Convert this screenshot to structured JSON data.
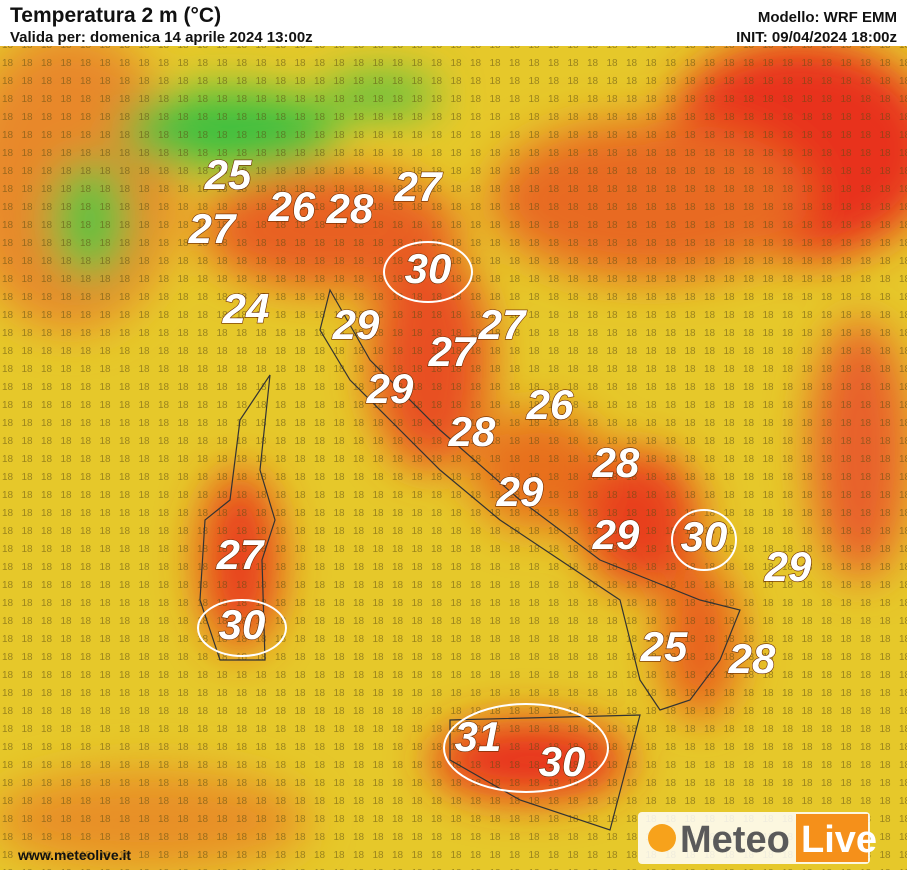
{
  "header": {
    "title": "Temperatura 2 m (°C)",
    "valid": "Valida per: domenica 14 aprile 2024 13:00z",
    "model": "Modello: WRF EMM",
    "init": "INIT: 09/04/2024 18:00z"
  },
  "labels": [
    25,
    27,
    26,
    28,
    27,
    30,
    24,
    29,
    27,
    27,
    29,
    26,
    28,
    28,
    29,
    29,
    30,
    29,
    27,
    30,
    25,
    28,
    31,
    30
  ],
  "footer": {
    "url": "www.meteolive.it",
    "logo_left": "Meteo",
    "logo_right": "Live"
  }
}
